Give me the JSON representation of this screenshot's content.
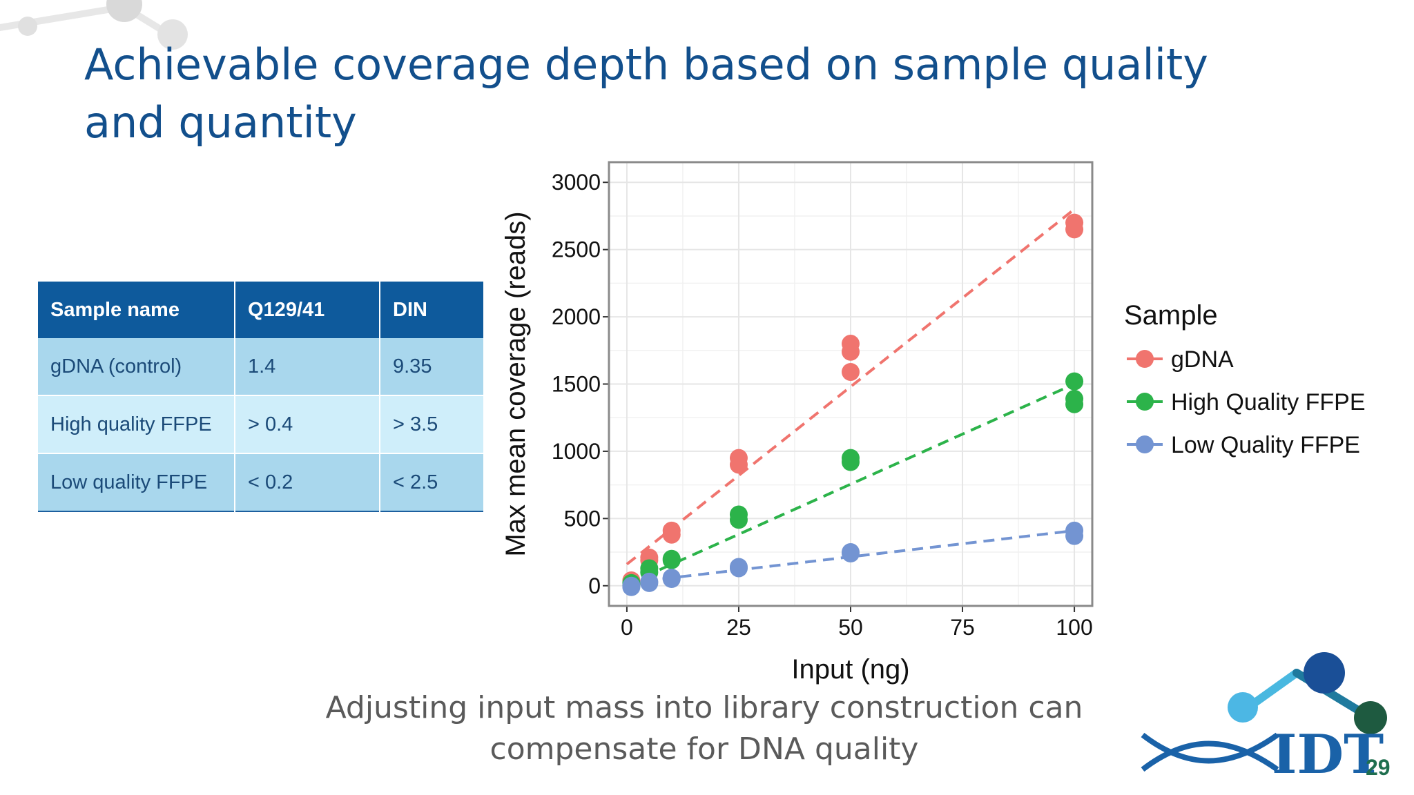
{
  "slide": {
    "title": "Achievable coverage depth based on sample quality and quantity",
    "caption": "Adjusting input mass into library construction can compensate for DNA quality",
    "page_number": "29",
    "logo_text": "IDT"
  },
  "table": {
    "headers": [
      "Sample name",
      "Q129/41",
      "DIN"
    ],
    "rows": [
      [
        "gDNA (control)",
        "1.4",
        "9.35"
      ],
      [
        "High quality FFPE",
        "> 0.4",
        "> 3.5"
      ],
      [
        "Low quality FFPE",
        "< 0.2",
        "< 2.5"
      ]
    ]
  },
  "chart_data": {
    "type": "scatter",
    "title": "",
    "xlabel": "Input (ng)",
    "ylabel": "Max mean coverage (reads)",
    "xlim": [
      -4,
      104
    ],
    "ylim": [
      -150,
      3150
    ],
    "x_ticks": [
      0,
      25,
      50,
      75,
      100
    ],
    "y_ticks": [
      0,
      500,
      1000,
      1500,
      2000,
      2500,
      3000
    ],
    "grid": true,
    "legend_title": "Sample",
    "legend_position": "right",
    "series": [
      {
        "name": "gDNA",
        "color": "#f0746e",
        "trend": [
          [
            0,
            160
          ],
          [
            100,
            2800
          ]
        ],
        "points": [
          [
            1,
            40
          ],
          [
            1,
            10
          ],
          [
            5,
            210
          ],
          [
            5,
            190
          ],
          [
            10,
            410
          ],
          [
            10,
            380
          ],
          [
            25,
            950
          ],
          [
            25,
            900
          ],
          [
            50,
            1800
          ],
          [
            50,
            1740
          ],
          [
            50,
            1590
          ],
          [
            100,
            2700
          ],
          [
            100,
            2650
          ]
        ]
      },
      {
        "name": "High Quality FFPE",
        "color": "#2cb34a",
        "trend": [
          [
            0,
            10
          ],
          [
            100,
            1500
          ]
        ],
        "points": [
          [
            1,
            20
          ],
          [
            1,
            0
          ],
          [
            5,
            130
          ],
          [
            5,
            100
          ],
          [
            10,
            200
          ],
          [
            10,
            190
          ],
          [
            25,
            530
          ],
          [
            25,
            490
          ],
          [
            50,
            950
          ],
          [
            50,
            920
          ],
          [
            100,
            1520
          ],
          [
            100,
            1390
          ],
          [
            100,
            1350
          ]
        ]
      },
      {
        "name": "Low Quality FFPE",
        "color": "#7394d2",
        "trend": [
          [
            0,
            20
          ],
          [
            100,
            410
          ]
        ],
        "points": [
          [
            1,
            0
          ],
          [
            1,
            -10
          ],
          [
            5,
            30
          ],
          [
            5,
            20
          ],
          [
            10,
            60
          ],
          [
            10,
            50
          ],
          [
            25,
            140
          ],
          [
            25,
            130
          ],
          [
            50,
            250
          ],
          [
            50,
            240
          ],
          [
            100,
            410
          ],
          [
            100,
            370
          ]
        ]
      }
    ]
  }
}
